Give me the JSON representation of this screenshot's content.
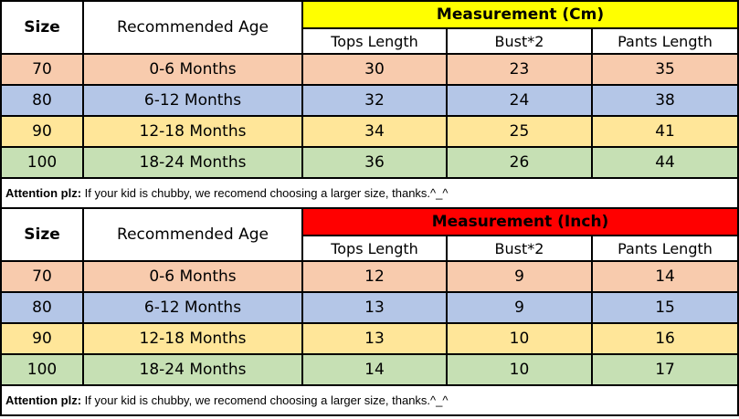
{
  "shared": {
    "size_label": "Size",
    "age_label": "Recommended Age",
    "sub_headers": [
      "Tops Length",
      "Bust*2",
      "Pants Length"
    ]
  },
  "attention": {
    "label": "Attention plz:",
    "text": " If your kid is chubby, we recomend choosing a larger size, thanks.^_^"
  },
  "colors": {
    "cm_header_bg": "#FFFF00",
    "inch_header_bg": "#FF0000",
    "row_bgs": [
      "#F8CBAD",
      "#B4C6E7",
      "#FFE699",
      "#C6E0B4"
    ],
    "border": "#000000"
  },
  "tables": [
    {
      "title": "Measurement (Cm)",
      "header_bg": "#FFFF00",
      "rows": [
        {
          "size": "70",
          "age": "0-6 Months",
          "values": [
            "30",
            "23",
            "35"
          ],
          "bg": "#F8CBAD"
        },
        {
          "size": "80",
          "age": "6-12 Months",
          "values": [
            "32",
            "24",
            "38"
          ],
          "bg": "#B4C6E7"
        },
        {
          "size": "90",
          "age": "12-18 Months",
          "values": [
            "34",
            "25",
            "41"
          ],
          "bg": "#FFE699"
        },
        {
          "size": "100",
          "age": "18-24 Months",
          "values": [
            "36",
            "26",
            "44"
          ],
          "bg": "#C6E0B4"
        }
      ]
    },
    {
      "title": "Measurement (Inch)",
      "header_bg": "#FF0000",
      "rows": [
        {
          "size": "70",
          "age": "0-6 Months",
          "values": [
            "12",
            "9",
            "14"
          ],
          "bg": "#F8CBAD"
        },
        {
          "size": "80",
          "age": "6-12 Months",
          "values": [
            "13",
            "9",
            "15"
          ],
          "bg": "#B4C6E7"
        },
        {
          "size": "90",
          "age": "12-18 Months",
          "values": [
            "13",
            "10",
            "16"
          ],
          "bg": "#FFE699"
        },
        {
          "size": "100",
          "age": "18-24 Months",
          "values": [
            "14",
            "10",
            "17"
          ],
          "bg": "#C6E0B4"
        }
      ]
    }
  ]
}
